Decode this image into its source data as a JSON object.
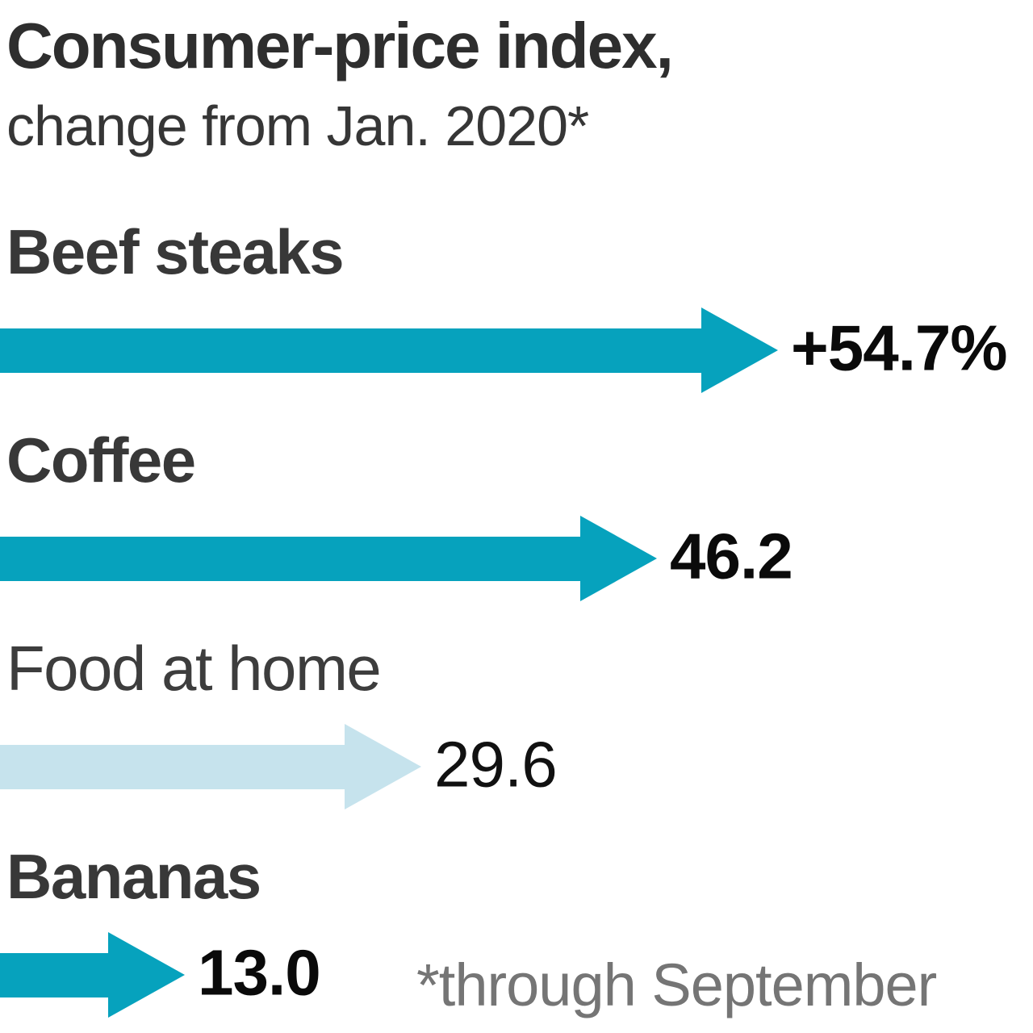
{
  "header": {
    "title": "Consumer-price index,",
    "subtitle": "change from Jan. 2020*"
  },
  "footnote": "*through September",
  "colors": {
    "accent_teal": "#06a2bd",
    "accent_light_blue": "#c6e3ed",
    "label_dark": "#383838",
    "value_black": "#0a0a0a",
    "footnote_gray": "#757575"
  },
  "rows": [
    {
      "label": "Beef steaks",
      "value": 54.7,
      "value_label": "+54.7%",
      "arrow_color": "#06a2bd",
      "muted": false
    },
    {
      "label": "Coffee",
      "value": 46.2,
      "value_label": "46.2",
      "arrow_color": "#06a2bd",
      "muted": false
    },
    {
      "label": "Food at home",
      "value": 29.6,
      "value_label": "29.6",
      "arrow_color": "#c6e3ed",
      "muted": true
    },
    {
      "label": "Bananas",
      "value": 13.0,
      "value_label": "13.0",
      "arrow_color": "#06a2bd",
      "muted": false
    }
  ],
  "chart_data": {
    "type": "bar",
    "orientation": "horizontal",
    "title": "Consumer-price index,",
    "subtitle": "change from Jan. 2020*",
    "footnote": "*through September",
    "categories": [
      "Beef steaks",
      "Coffee",
      "Food at home",
      "Bananas"
    ],
    "values": [
      54.7,
      46.2,
      29.6,
      13.0
    ],
    "value_labels": [
      "+54.7%",
      "46.2",
      "29.6",
      "13.0"
    ],
    "unit": "percent change",
    "xlim": [
      0,
      60
    ],
    "grid": false,
    "legend": false,
    "bar_style": "arrow",
    "highlight_muted_category": "Food at home"
  }
}
